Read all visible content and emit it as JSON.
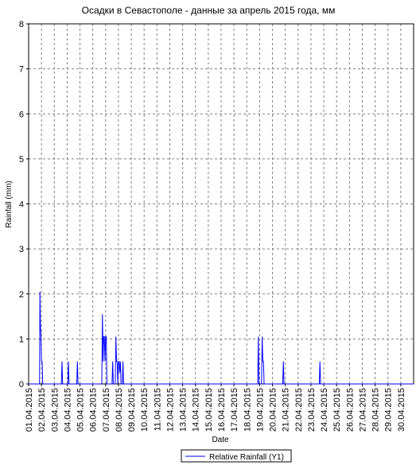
{
  "chart_data": {
    "type": "line",
    "title": "Осадки в Севастополе - данные за апрель 2015 года, мм",
    "x_label": "Date",
    "y_label": "Rainfall (mm)",
    "x": [
      1.0,
      1.85,
      1.88,
      1.92,
      1.96,
      2.0,
      2.05,
      2.1,
      3.55,
      3.6,
      3.65,
      4.05,
      4.1,
      4.15,
      4.75,
      4.8,
      4.85,
      6.7,
      6.75,
      6.8,
      6.85,
      6.9,
      6.95,
      7.0,
      7.05,
      7.1,
      7.5,
      7.55,
      7.6,
      7.75,
      7.8,
      7.85,
      7.9,
      7.95,
      8.0,
      8.05,
      8.1,
      8.15,
      8.2,
      8.3,
      8.35,
      8.4,
      18.85,
      18.9,
      18.95,
      19.15,
      19.2,
      19.25,
      19.3,
      19.35,
      20.8,
      20.85,
      20.9,
      23.65,
      23.7,
      23.75,
      31.0
    ],
    "series": [
      {
        "name": "Relative Rainfall (Y1)",
        "color": "#0000ff",
        "values": [
          0,
          0,
          2.05,
          1.3,
          1.05,
          0.5,
          0.5,
          0,
          0,
          0.5,
          0,
          0,
          0.5,
          0,
          0,
          0.5,
          0,
          0,
          1.55,
          0.5,
          1.05,
          1.05,
          0.5,
          1.05,
          1.05,
          0,
          0,
          0.5,
          0,
          0,
          1.05,
          0.5,
          0.5,
          0,
          0.5,
          0.5,
          0.25,
          0.5,
          0,
          0,
          0.5,
          0,
          0,
          1.05,
          0,
          0,
          1.05,
          0.5,
          0.5,
          0,
          0,
          0.5,
          0,
          0,
          0.5,
          0,
          0
        ]
      }
    ],
    "xlim": [
      1,
      31
    ],
    "xticks": [
      {
        "value": 1,
        "label": "01.04.2015"
      },
      {
        "value": 2,
        "label": "02.04.2015"
      },
      {
        "value": 3,
        "label": "03.04.2015"
      },
      {
        "value": 4,
        "label": "04.04.2015"
      },
      {
        "value": 5,
        "label": "05.04.2015"
      },
      {
        "value": 6,
        "label": "06.04.2015"
      },
      {
        "value": 7,
        "label": "07.04.2015"
      },
      {
        "value": 8,
        "label": "08.04.2015"
      },
      {
        "value": 9,
        "label": "09.04.2015"
      },
      {
        "value": 10,
        "label": "10.04.2015"
      },
      {
        "value": 11,
        "label": "11.04.2015"
      },
      {
        "value": 12,
        "label": "12.04.2015"
      },
      {
        "value": 13,
        "label": "13.04.2015"
      },
      {
        "value": 14,
        "label": "14.04.2015"
      },
      {
        "value": 15,
        "label": "15.04.2015"
      },
      {
        "value": 16,
        "label": "16.04.2015"
      },
      {
        "value": 17,
        "label": "17.04.2015"
      },
      {
        "value": 18,
        "label": "18.04.2015"
      },
      {
        "value": 19,
        "label": "19.04.2015"
      },
      {
        "value": 20,
        "label": "20.04.2015"
      },
      {
        "value": 21,
        "label": "21.04.2015"
      },
      {
        "value": 22,
        "label": "22.04.2015"
      },
      {
        "value": 23,
        "label": "23.04.2015"
      },
      {
        "value": 24,
        "label": "24.04.2015"
      },
      {
        "value": 25,
        "label": "25.04.2015"
      },
      {
        "value": 26,
        "label": "26.04.2015"
      },
      {
        "value": 27,
        "label": "27.04.2015"
      },
      {
        "value": 28,
        "label": "28.04.2015"
      },
      {
        "value": 29,
        "label": "29.04.2015"
      },
      {
        "value": 30,
        "label": "30.04.2015"
      }
    ],
    "ylim": [
      0,
      8
    ],
    "yticks": [
      0,
      1,
      2,
      3,
      4,
      5,
      6,
      7,
      8
    ],
    "grid": true
  }
}
